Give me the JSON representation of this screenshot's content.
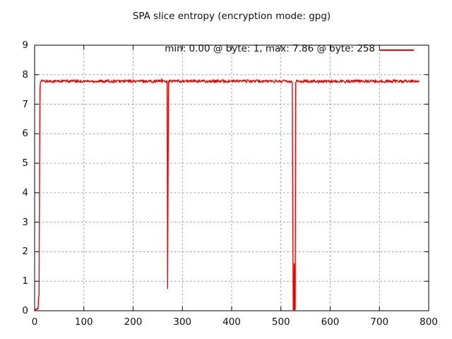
{
  "chart_data": {
    "type": "line",
    "title": "SPA slice entropy (encryption mode: gpg)",
    "xlabel": "",
    "ylabel": "",
    "xlim": [
      0,
      800
    ],
    "ylim": [
      0,
      9
    ],
    "x_ticks": [
      0,
      100,
      200,
      300,
      400,
      500,
      600,
      700,
      800
    ],
    "y_ticks": [
      0,
      1,
      2,
      3,
      4,
      5,
      6,
      7,
      8,
      9
    ],
    "grid": true,
    "legend_position": "top-right-inside",
    "series": [
      {
        "name": "min: 0.00 @ byte: 1, max: 7.86 @ byte: 258",
        "color": "#ee0000",
        "x_start": 1,
        "x_end": 780,
        "baseline": 7.78,
        "noise_amplitude": 0.05,
        "anchor_points": [
          [
            1,
            0.0
          ],
          [
            2,
            0.05
          ],
          [
            3,
            0.04
          ],
          [
            4,
            0.07
          ],
          [
            5,
            0.05
          ],
          [
            6,
            0.08
          ],
          [
            7,
            0.06
          ],
          [
            8,
            0.45
          ],
          [
            9,
            0.5
          ],
          [
            10,
            4.85
          ],
          [
            11,
            7.55
          ],
          [
            258,
            7.86
          ],
          [
            269,
            7.73
          ],
          [
            270,
            0.75
          ],
          [
            271,
            4.8
          ],
          [
            272,
            7.76
          ],
          [
            523,
            7.74
          ],
          [
            524,
            3.9
          ],
          [
            525,
            0.02
          ],
          [
            526,
            0.04
          ],
          [
            527,
            1.6
          ],
          [
            528,
            0.02
          ],
          [
            529,
            0.05
          ],
          [
            530,
            7.73
          ]
        ]
      }
    ],
    "annotations": {
      "min": {
        "value": "0.00",
        "byte": "1"
      },
      "max": {
        "value": "7.86",
        "byte": "258"
      }
    }
  },
  "colors": {
    "line": "#ee0000",
    "grid": "#9c9c9c",
    "border": "#000000",
    "text": "#111111",
    "background": "#ffffff"
  }
}
